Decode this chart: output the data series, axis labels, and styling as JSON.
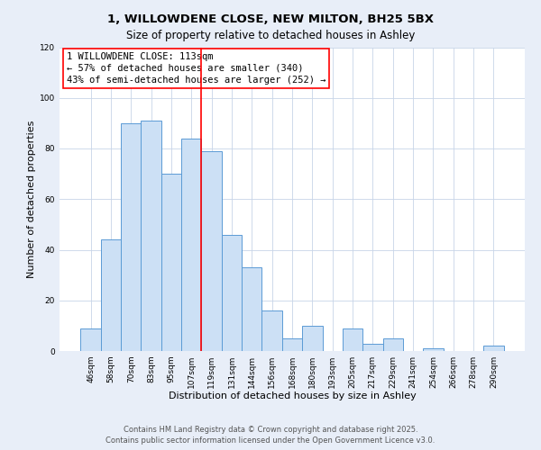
{
  "title": "1, WILLOWDENE CLOSE, NEW MILTON, BH25 5BX",
  "subtitle": "Size of property relative to detached houses in Ashley",
  "xlabel": "Distribution of detached houses by size in Ashley",
  "ylabel": "Number of detached properties",
  "bar_labels": [
    "46sqm",
    "58sqm",
    "70sqm",
    "83sqm",
    "95sqm",
    "107sqm",
    "119sqm",
    "131sqm",
    "144sqm",
    "156sqm",
    "168sqm",
    "180sqm",
    "193sqm",
    "205sqm",
    "217sqm",
    "229sqm",
    "241sqm",
    "254sqm",
    "266sqm",
    "278sqm",
    "290sqm"
  ],
  "bar_values": [
    9,
    44,
    90,
    91,
    70,
    84,
    79,
    46,
    33,
    16,
    5,
    10,
    0,
    9,
    3,
    5,
    0,
    1,
    0,
    0,
    2
  ],
  "bar_color": "#cce0f5",
  "bar_edge_color": "#5b9bd5",
  "vline_x": 5.5,
  "vline_color": "red",
  "vline_linewidth": 1.2,
  "annotation_line1": "1 WILLOWDENE CLOSE: 113sqm",
  "annotation_line2": "← 57% of detached houses are smaller (340)",
  "annotation_line3": "43% of semi-detached houses are larger (252) →",
  "ylim": [
    0,
    120
  ],
  "yticks": [
    0,
    20,
    40,
    60,
    80,
    100,
    120
  ],
  "footer_line1": "Contains HM Land Registry data © Crown copyright and database right 2025.",
  "footer_line2": "Contains public sector information licensed under the Open Government Licence v3.0.",
  "bg_color": "#e8eef8",
  "plot_bg_color": "#ffffff",
  "grid_color": "#c8d4e8",
  "title_fontsize": 9.5,
  "subtitle_fontsize": 8.5,
  "axis_label_fontsize": 8,
  "tick_fontsize": 6.5,
  "annotation_fontsize": 7.5,
  "footer_fontsize": 6
}
